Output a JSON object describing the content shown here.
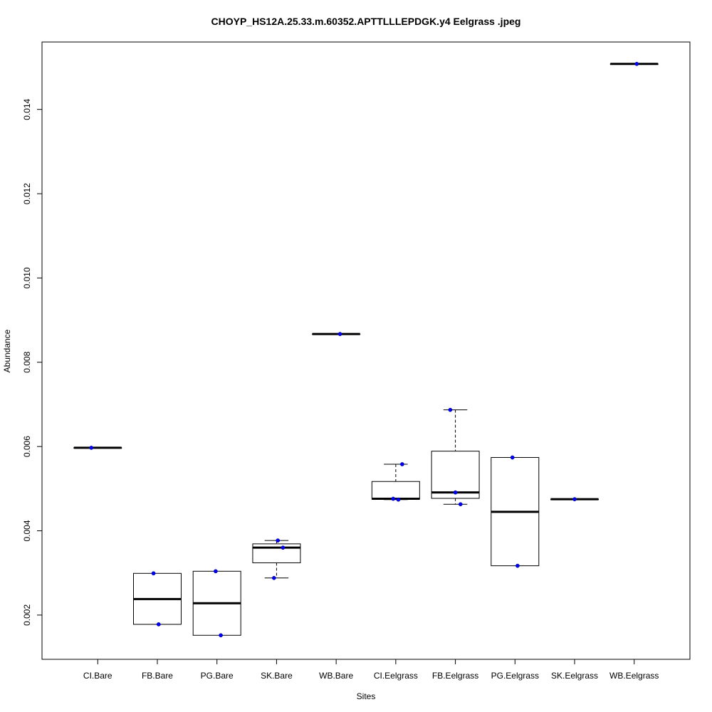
{
  "chart_data": {
    "type": "boxplot",
    "title": "CHOYP_HS12A.25.33.m.60352.APTTLLLEPDGK.y4 Eelgrass .jpeg",
    "xlabel": "Sites",
    "ylabel": "Abundance",
    "ylim": [
      0.00095,
      0.0156
    ],
    "yticks": [
      0.002,
      0.004,
      0.006,
      0.008,
      0.01,
      0.012,
      0.014
    ],
    "ytick_labels": [
      "0.002",
      "0.004",
      "0.006",
      "0.008",
      "0.010",
      "0.012",
      "0.014"
    ],
    "grid": false,
    "point_color": "#0000ff",
    "categories": [
      "CI.Bare",
      "FB.Bare",
      "PG.Bare",
      "SK.Bare",
      "WB.Bare",
      "CI.Eelgrass",
      "FB.Eelgrass",
      "PG.Eelgrass",
      "SK.Eelgrass",
      "WB.Eelgrass"
    ],
    "boxes": [
      {
        "min": 0.00597,
        "q1": 0.00597,
        "median": 0.00597,
        "q3": 0.00597,
        "max": 0.00597,
        "points": [
          0.00597
        ]
      },
      {
        "min": 0.00178,
        "q1": 0.00178,
        "median": 0.00238,
        "q3": 0.00299,
        "max": 0.00299,
        "points": [
          0.00299,
          0.00178
        ]
      },
      {
        "min": 0.00152,
        "q1": 0.00152,
        "median": 0.00228,
        "q3": 0.00304,
        "max": 0.00304,
        "points": [
          0.00304,
          0.00152
        ]
      },
      {
        "min": 0.00288,
        "q1": 0.00324,
        "median": 0.0036,
        "q3": 0.00369,
        "max": 0.00377,
        "points": [
          0.00377,
          0.0036,
          0.00288
        ]
      },
      {
        "min": 0.00867,
        "q1": 0.00867,
        "median": 0.00867,
        "q3": 0.00867,
        "max": 0.00867,
        "points": [
          0.00867
        ]
      },
      {
        "min": 0.00474,
        "q1": 0.00475,
        "median": 0.00476,
        "q3": 0.00517,
        "max": 0.00558,
        "points": [
          0.00558,
          0.00476,
          0.00474
        ]
      },
      {
        "min": 0.00463,
        "q1": 0.00477,
        "median": 0.00491,
        "q3": 0.00589,
        "max": 0.00687,
        "points": [
          0.00687,
          0.00491,
          0.00463
        ]
      },
      {
        "min": 0.00317,
        "q1": 0.00317,
        "median": 0.00445,
        "q3": 0.00574,
        "max": 0.00574,
        "points": [
          0.00574,
          0.00317
        ]
      },
      {
        "min": 0.00475,
        "q1": 0.00475,
        "median": 0.00475,
        "q3": 0.00475,
        "max": 0.00475,
        "points": [
          0.00475
        ]
      },
      {
        "min": 0.01508,
        "q1": 0.01508,
        "median": 0.01508,
        "q3": 0.01508,
        "max": 0.01508,
        "points": [
          0.01508
        ]
      }
    ]
  }
}
